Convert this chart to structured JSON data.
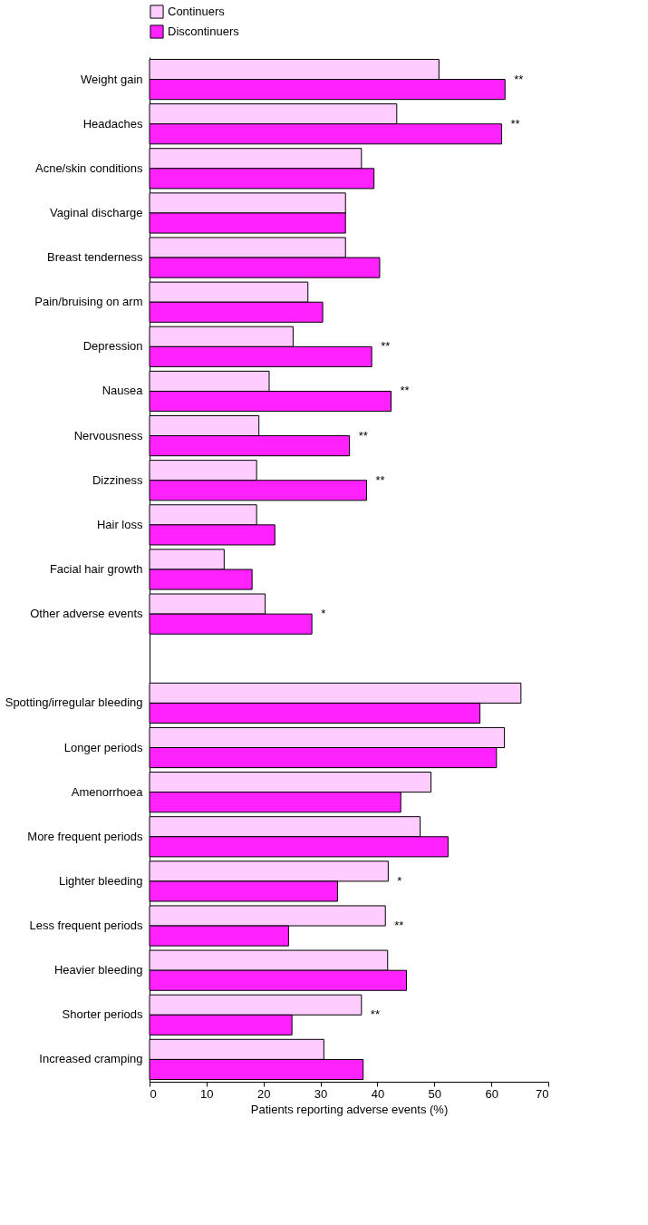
{
  "chart_data": {
    "type": "bar",
    "orientation": "horizontal",
    "xlabel": "Patients reporting adverse events (%)",
    "categories": [
      "Weight gain",
      "Headaches",
      "Acne/skin conditions",
      "Vaginal discharge",
      "Breast tenderness",
      "Pain/bruising on arm",
      "Depression",
      "Nausea",
      "Nervousness",
      "Dizziness",
      "Hair loss",
      "Facial hair growth",
      "Other adverse events",
      null,
      "Spotting/irregular bleeding",
      "Longer periods",
      "Amenorrhoea",
      "More frequent periods",
      "Lighter bleeding",
      "Less frequent periods",
      "Heavier bleeding",
      "Shorter periods",
      "Increased cramping"
    ],
    "series": [
      {
        "name": "Continuers",
        "color": "#ffccff",
        "values": [
          50.8,
          43.4,
          37.2,
          34.4,
          34.4,
          27.8,
          25.2,
          21.0,
          19.2,
          18.8,
          18.8,
          13.1,
          20.3,
          null,
          65.2,
          62.3,
          49.4,
          47.5,
          41.9,
          41.4,
          41.8,
          37.2,
          30.6
        ]
      },
      {
        "name": "Discontinuers",
        "color": "#ff22ff",
        "values": [
          62.4,
          61.8,
          39.4,
          34.4,
          40.4,
          30.4,
          39.0,
          42.4,
          35.1,
          38.1,
          22.0,
          18.0,
          28.5,
          null,
          58.0,
          60.9,
          44.1,
          52.4,
          33.0,
          24.4,
          45.1,
          25.0,
          37.5
        ]
      }
    ],
    "xlim": [
      0,
      70
    ],
    "xticks": [
      0,
      10,
      20,
      30,
      40,
      50,
      60,
      70
    ],
    "annotations": [
      {
        "text": "**",
        "x": 62.4,
        "y": "Weight gain"
      },
      {
        "text": "**",
        "x": 61.8,
        "y": "Headaches"
      },
      {
        "text": "**",
        "x": 39.0,
        "y": "Depression"
      },
      {
        "text": "**",
        "x": 42.4,
        "y": "Nausea"
      },
      {
        "text": "**",
        "x": 35.1,
        "y": "Nervousness"
      },
      {
        "text": "**",
        "x": 38.1,
        "y": "Dizziness"
      },
      {
        "text": "*",
        "x": 28.5,
        "y": "Other adverse events"
      },
      {
        "text": "*",
        "x": 41.9,
        "y": "Lighter bleeding"
      },
      {
        "text": "**",
        "x": 41.4,
        "y": "Less frequent periods"
      },
      {
        "text": "**",
        "x": 37.2,
        "y": "Shorter periods"
      }
    ],
    "legend": "top",
    "grid": false
  }
}
